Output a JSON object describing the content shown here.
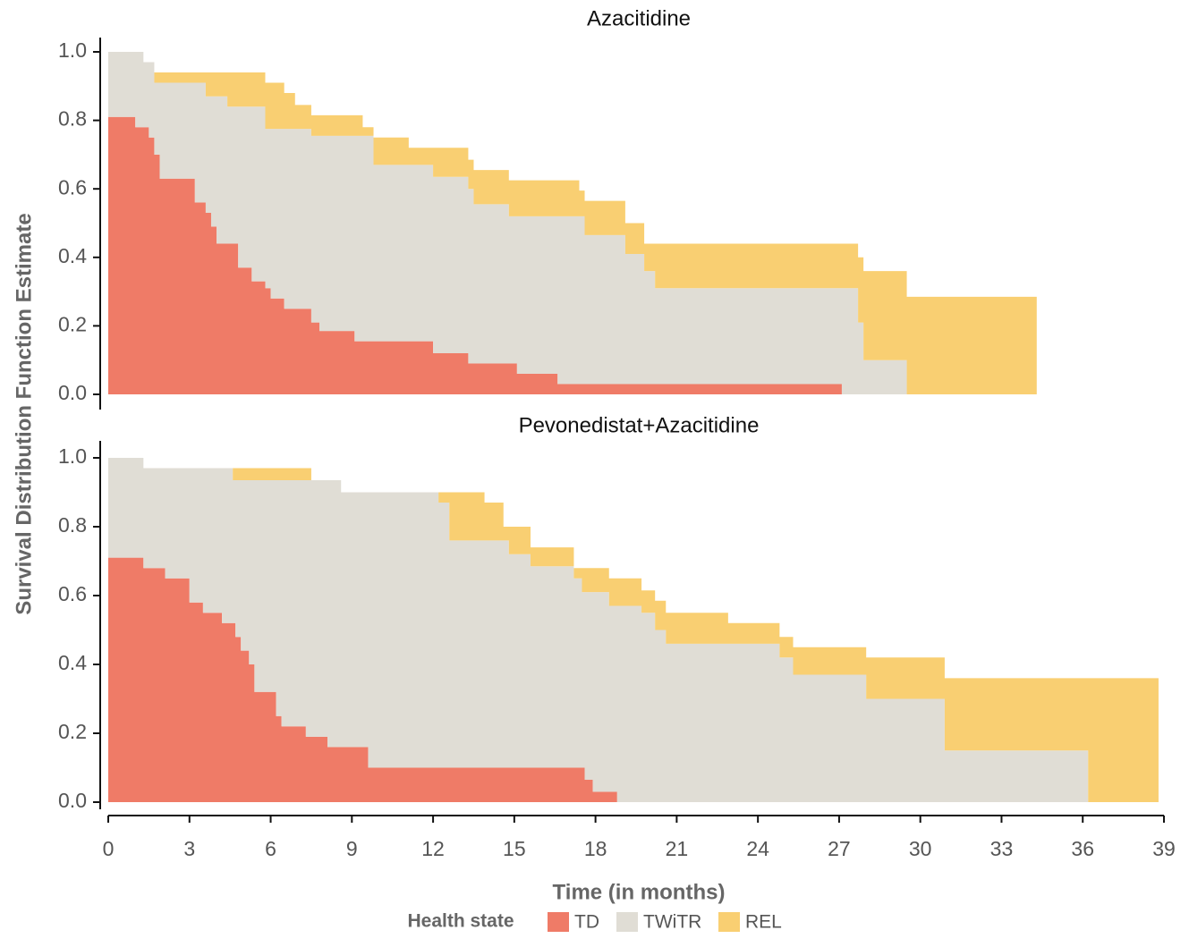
{
  "ylabel": "Survival Distribution Function Estimate",
  "xlabel": "Time (in months)",
  "legend": {
    "title": "Health state",
    "position": "bottom"
  },
  "chart_data": [
    {
      "type": "stacked-step-area",
      "title": "Azacitidine",
      "x": [
        0,
        1.0,
        1.3,
        1.5,
        1.7,
        1.9,
        3.2,
        3.6,
        3.8,
        4.0,
        4.4,
        4.8,
        5.3,
        5.8,
        6.0,
        6.5,
        6.9,
        7.5,
        7.8,
        9.1,
        9.4,
        9.8,
        11.1,
        12.0,
        13.3,
        13.5,
        14.8,
        15.1,
        16.6,
        17.4,
        17.6,
        19.1,
        19.8,
        20.2,
        27.1,
        27.7,
        27.9,
        29.5,
        34.3
      ],
      "series": [
        {
          "name": "TD",
          "color": "#ef7b67",
          "values": [
            0.81,
            0.78,
            0.78,
            0.75,
            0.7,
            0.63,
            0.56,
            0.53,
            0.49,
            0.44,
            0.44,
            0.37,
            0.33,
            0.31,
            0.28,
            0.25,
            0.25,
            0.21,
            0.185,
            0.155,
            0.155,
            0.155,
            0.155,
            0.12,
            0.09,
            0.09,
            0.09,
            0.06,
            0.03,
            0.03,
            0.03,
            0.03,
            0.03,
            0.03,
            0,
            0,
            0,
            0,
            0
          ]
        },
        {
          "name": "TWiTR",
          "color": "#e0ddd5",
          "values": [
            0.19,
            0.22,
            0.19,
            0.22,
            0.21,
            0.28,
            0.35,
            0.34,
            0.38,
            0.43,
            0.4,
            0.47,
            0.51,
            0.465,
            0.495,
            0.525,
            0.525,
            0.545,
            0.57,
            0.6,
            0.6,
            0.515,
            0.515,
            0.515,
            0.51,
            0.465,
            0.43,
            0.46,
            0.49,
            0.49,
            0.435,
            0.38,
            0.33,
            0.28,
            0.31,
            0.21,
            0.1,
            0,
            0
          ]
        },
        {
          "name": "REL",
          "color": "#f9cf72",
          "values": [
            0,
            0,
            0,
            0,
            0.03,
            0.03,
            0.03,
            0.07,
            0.07,
            0.07,
            0.1,
            0.1,
            0.1,
            0.135,
            0.135,
            0.105,
            0.07,
            0.06,
            0.06,
            0.06,
            0.025,
            0.08,
            0.05,
            0.085,
            0.085,
            0.1,
            0.105,
            0.105,
            0.105,
            0.075,
            0.1,
            0.09,
            0.08,
            0.13,
            0.13,
            0.19,
            0.26,
            0.285,
            0
          ]
        }
      ],
      "xlim": [
        0,
        39
      ],
      "ylim": [
        0,
        1
      ],
      "yticks": [
        {
          "value": 0,
          "label": "0.0"
        },
        0.2,
        0.4,
        0.6,
        0.8,
        {
          "value": 1,
          "label": "1.0"
        }
      ]
    },
    {
      "type": "stacked-step-area",
      "title": "Pevonedistat+Azacitidine",
      "x": [
        0,
        1.3,
        2.1,
        3.0,
        3.5,
        4.2,
        4.6,
        4.7,
        4.9,
        5.2,
        5.4,
        6.2,
        6.4,
        7.3,
        7.5,
        8.1,
        8.6,
        9.6,
        12.2,
        12.6,
        13.9,
        14.6,
        14.8,
        15.6,
        17.2,
        17.5,
        17.6,
        17.9,
        18.5,
        18.8,
        19.7,
        20.2,
        20.6,
        22.9,
        24.8,
        25.3,
        28.0,
        30.9,
        36.2,
        38.8
      ],
      "series": [
        {
          "name": "TD",
          "color": "#ef7b67",
          "values": [
            0.71,
            0.68,
            0.65,
            0.58,
            0.55,
            0.52,
            0.52,
            0.48,
            0.44,
            0.4,
            0.32,
            0.25,
            0.22,
            0.19,
            0.19,
            0.16,
            0.16,
            0.1,
            0.1,
            0.1,
            0.1,
            0.1,
            0.1,
            0.1,
            0.1,
            0.1,
            0.065,
            0.03,
            0.03,
            0,
            0,
            0,
            0,
            0,
            0,
            0,
            0,
            0,
            0,
            0
          ]
        },
        {
          "name": "TWiTR",
          "color": "#e0ddd5",
          "values": [
            0.29,
            0.29,
            0.32,
            0.39,
            0.42,
            0.45,
            0.415,
            0.455,
            0.495,
            0.535,
            0.615,
            0.685,
            0.715,
            0.745,
            0.745,
            0.775,
            0.74,
            0.8,
            0.77,
            0.66,
            0.66,
            0.66,
            0.62,
            0.585,
            0.55,
            0.51,
            0.545,
            0.58,
            0.54,
            0.57,
            0.55,
            0.5,
            0.46,
            0.46,
            0.42,
            0.37,
            0.3,
            0.15,
            0,
            0
          ]
        },
        {
          "name": "REL",
          "color": "#f9cf72",
          "values": [
            0,
            0,
            0,
            0,
            0,
            0,
            0.035,
            0.035,
            0.035,
            0.035,
            0.035,
            0.035,
            0.035,
            0.035,
            0,
            0,
            0,
            0,
            0.03,
            0.14,
            0.11,
            0.04,
            0.08,
            0.055,
            0.03,
            0.07,
            0.07,
            0.07,
            0.08,
            0.08,
            0.065,
            0.085,
            0.09,
            0.06,
            0.06,
            0.08,
            0.12,
            0.21,
            0.36,
            0
          ]
        }
      ],
      "xlim": [
        0,
        39
      ],
      "ylim": [
        0,
        1
      ],
      "yticks": [
        {
          "value": 0,
          "label": "0.0"
        },
        0.2,
        0.4,
        0.6,
        0.8,
        {
          "value": 1,
          "label": "1.0"
        }
      ],
      "xticks": [
        0,
        3,
        6,
        9,
        12,
        15,
        18,
        21,
        24,
        27,
        30,
        33,
        36,
        39
      ]
    }
  ]
}
